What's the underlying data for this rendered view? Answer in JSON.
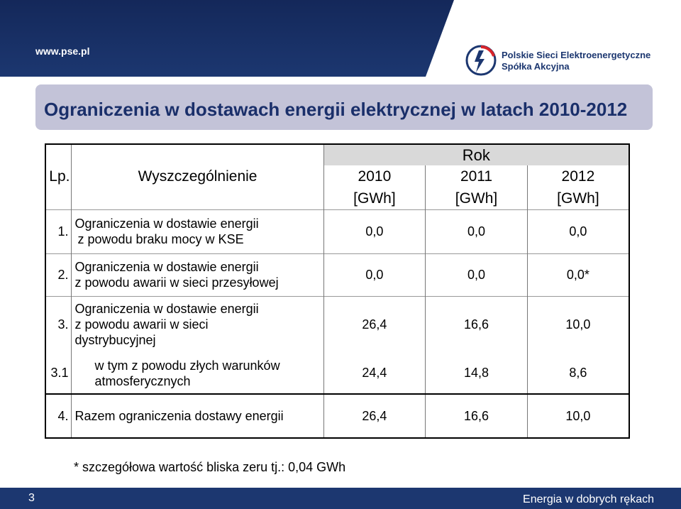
{
  "header": {
    "url": "www.pse.pl",
    "company_line1": "Polskie Sieci Elektroenergetyczne",
    "company_line2": "Spółka Akcyjna"
  },
  "title": "Ograniczenia w dostawach energii elektrycznej w latach 2010-2012",
  "table": {
    "rok_label": "Rok",
    "lp_label": "Lp.",
    "desc_label": "Wyszczególnienie",
    "years": [
      "2010",
      "2011",
      "2012"
    ],
    "unit": "[GWh]",
    "rows": [
      {
        "lp": "1.",
        "desc1": "Ograniczenia w dostawie energii",
        "desc2": "z powodu braku mocy w KSE",
        "desc3": "",
        "v": [
          "0,0",
          "0,0",
          "0,0"
        ]
      },
      {
        "lp": "2.",
        "desc1": "Ograniczenia w dostawie energii",
        "desc2": "z powodu awarii w sieci przesyłowej",
        "desc3": "",
        "v": [
          "0,0",
          "0,0",
          "0,0*"
        ]
      },
      {
        "lp": "3.",
        "desc1": "Ograniczenia w dostawie energii",
        "desc2": "z powodu awarii w sieci",
        "desc3": "dystrybucyjnej",
        "v": [
          "26,4",
          "16,6",
          "10,0"
        ]
      },
      {
        "lp": "3.1",
        "desc1": "w tym z powodu złych warunków",
        "desc2": "atmosferycznych",
        "desc3": "",
        "v": [
          "24,4",
          "14,8",
          "8,6"
        ]
      },
      {
        "lp": "4.",
        "desc1": "Razem ograniczenia dostawy energii",
        "desc2": "",
        "desc3": "",
        "v": [
          "26,4",
          "16,6",
          "10,0"
        ]
      }
    ]
  },
  "note": "* szczegółowa wartość bliska zeru tj.: 0,04 GWh",
  "footer": {
    "page": "3",
    "slogan": "Energia w dobrych rękach"
  },
  "colors": {
    "navy": "#1c3770",
    "title_box": "#c3c3d8",
    "header_grey": "#d9d9d9",
    "logo_red": "#d8242a"
  }
}
